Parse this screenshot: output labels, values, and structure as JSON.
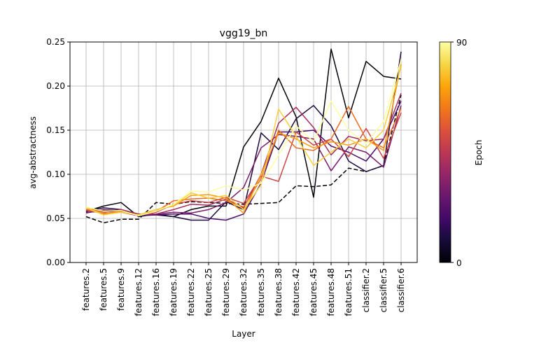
{
  "chart_data": {
    "type": "line",
    "title": "vgg19_bn",
    "xlabel": "Layer",
    "ylabel": "avg-abstractness",
    "ylim": [
      0,
      0.25
    ],
    "yticks": [
      "0.00",
      "0.05",
      "0.10",
      "0.15",
      "0.20",
      "0.25"
    ],
    "grid": true,
    "categories": [
      "features.2",
      "features.5",
      "features.9",
      "features.12",
      "features.16",
      "features.19",
      "features.22",
      "features.25",
      "features.29",
      "features.32",
      "features.35",
      "features.38",
      "features.42",
      "features.45",
      "features.48",
      "features.51",
      "classifier.2",
      "classifier.5",
      "classifier.6"
    ],
    "colorbar": {
      "label": "Epoch",
      "min": 0,
      "max": 90,
      "min_label": "0",
      "max_label": "90",
      "colormap": "inferno"
    },
    "series": [
      {
        "epoch": 0,
        "dashed": true,
        "values": [
          0.052,
          0.045,
          0.049,
          0.049,
          0.068,
          0.066,
          0.069,
          0.068,
          0.067,
          0.066,
          0.067,
          0.068,
          0.087,
          0.086,
          0.088,
          0.107,
          0.103,
          0.11,
          0.19
        ]
      },
      {
        "epoch": 1,
        "dashed": false,
        "values": [
          0.058,
          0.064,
          0.068,
          0.052,
          0.055,
          0.052,
          0.06,
          0.064,
          0.064,
          0.131,
          0.16,
          0.209,
          0.165,
          0.074,
          0.242,
          0.164,
          0.228,
          0.211,
          0.208
        ]
      },
      {
        "epoch": 10,
        "dashed": false,
        "values": [
          0.058,
          0.062,
          0.06,
          0.054,
          0.054,
          0.052,
          0.048,
          0.048,
          0.069,
          0.06,
          0.147,
          0.128,
          0.163,
          0.178,
          0.155,
          0.115,
          0.103,
          0.11,
          0.239
        ]
      },
      {
        "epoch": 20,
        "dashed": false,
        "values": [
          0.057,
          0.058,
          0.057,
          0.053,
          0.054,
          0.055,
          0.055,
          0.05,
          0.048,
          0.055,
          0.09,
          0.148,
          0.148,
          0.15,
          0.132,
          0.125,
          0.115,
          0.14,
          0.183
        ]
      },
      {
        "epoch": 30,
        "dashed": false,
        "values": [
          0.056,
          0.06,
          0.059,
          0.054,
          0.055,
          0.057,
          0.056,
          0.06,
          0.068,
          0.085,
          0.13,
          0.145,
          0.143,
          0.14,
          0.104,
          0.131,
          0.125,
          0.108,
          0.178
        ]
      },
      {
        "epoch": 40,
        "dashed": false,
        "values": [
          0.059,
          0.057,
          0.06,
          0.055,
          0.055,
          0.06,
          0.066,
          0.065,
          0.072,
          0.062,
          0.1,
          0.158,
          0.176,
          0.153,
          0.122,
          0.143,
          0.138,
          0.14,
          0.192
        ]
      },
      {
        "epoch": 50,
        "dashed": false,
        "values": [
          0.06,
          0.059,
          0.057,
          0.053,
          0.057,
          0.066,
          0.07,
          0.068,
          0.074,
          0.067,
          0.098,
          0.092,
          0.148,
          0.133,
          0.14,
          0.12,
          0.152,
          0.118,
          0.17
        ]
      },
      {
        "epoch": 60,
        "dashed": false,
        "values": [
          0.06,
          0.055,
          0.058,
          0.054,
          0.058,
          0.07,
          0.072,
          0.073,
          0.07,
          0.063,
          0.095,
          0.15,
          0.13,
          0.127,
          0.14,
          0.177,
          0.14,
          0.13,
          0.175
        ]
      },
      {
        "epoch": 70,
        "dashed": false,
        "values": [
          0.062,
          0.056,
          0.057,
          0.054,
          0.06,
          0.064,
          0.076,
          0.077,
          0.073,
          0.056,
          0.1,
          0.147,
          0.14,
          0.13,
          0.137,
          0.133,
          0.14,
          0.127,
          0.225
        ]
      },
      {
        "epoch": 80,
        "dashed": false,
        "values": [
          0.062,
          0.054,
          0.057,
          0.054,
          0.06,
          0.065,
          0.079,
          0.073,
          0.076,
          0.06,
          0.088,
          0.174,
          0.143,
          0.11,
          0.125,
          0.14,
          0.13,
          0.15,
          0.222
        ]
      },
      {
        "epoch": 90,
        "dashed": false,
        "values": [
          0.063,
          0.058,
          0.059,
          0.053,
          0.058,
          0.066,
          0.081,
          0.08,
          0.087,
          0.082,
          0.09,
          0.122,
          0.155,
          0.137,
          0.183,
          0.15,
          0.135,
          0.16,
          0.23
        ]
      }
    ]
  }
}
